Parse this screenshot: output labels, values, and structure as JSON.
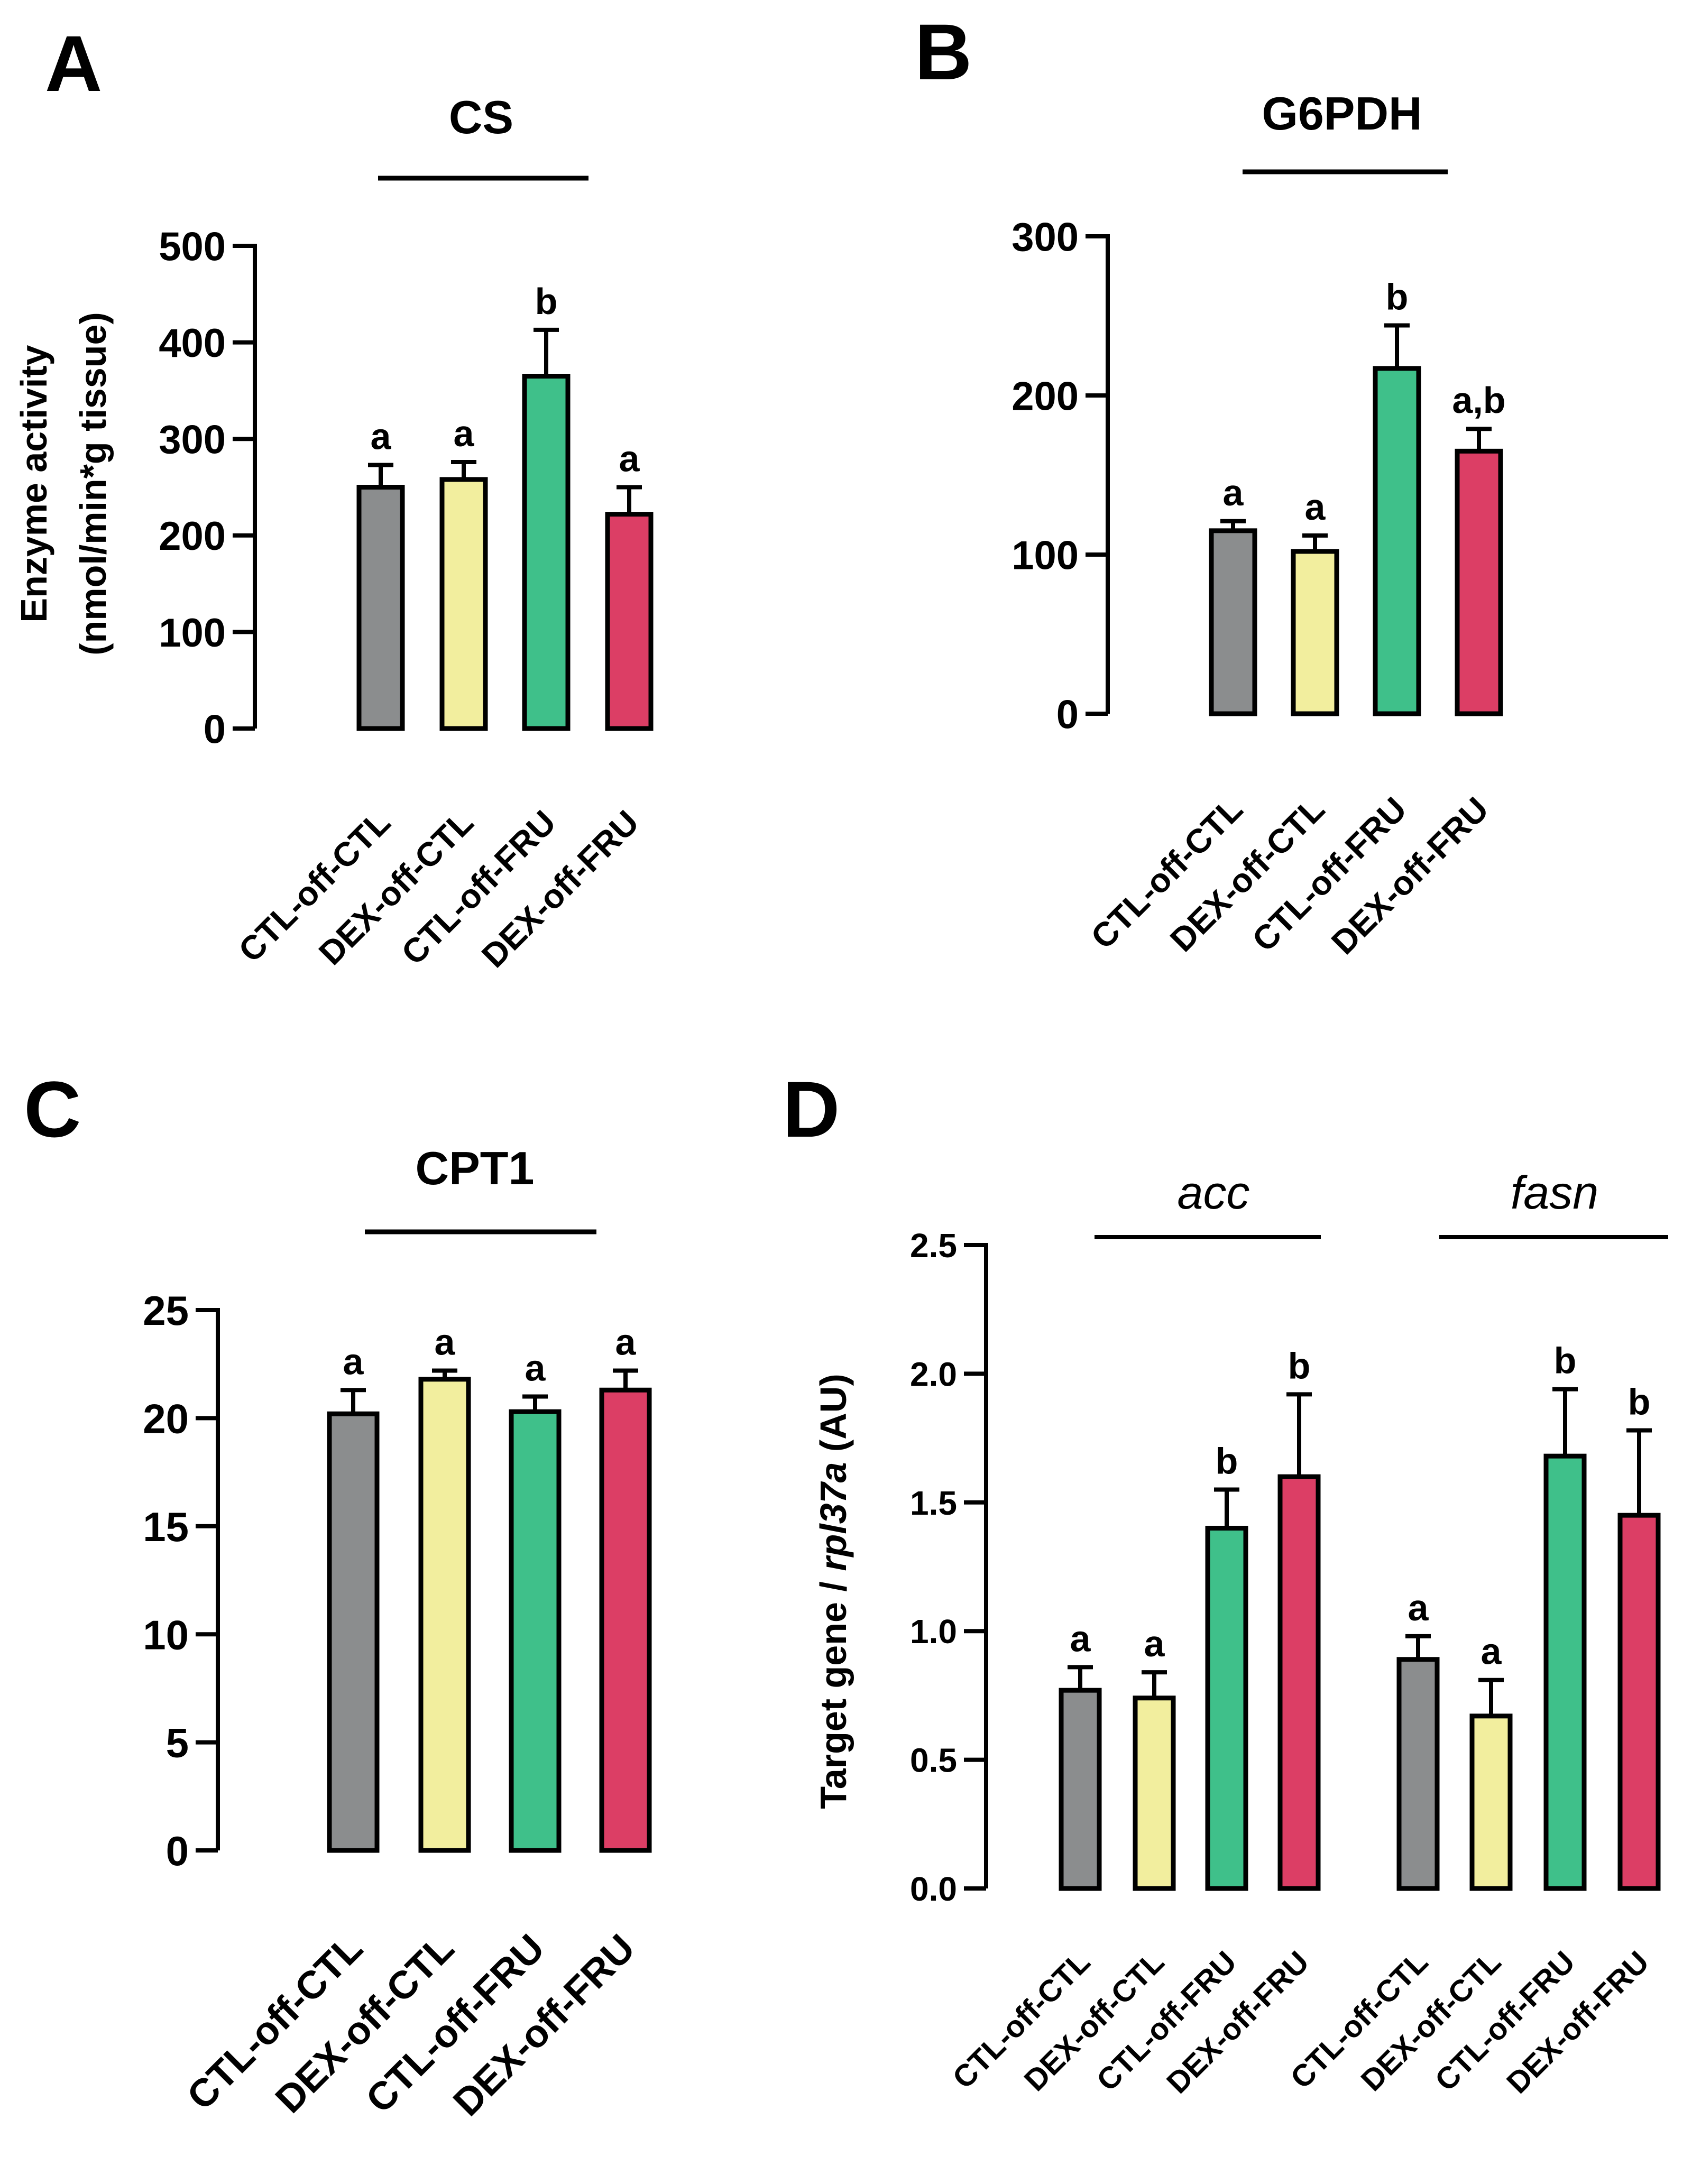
{
  "colors": {
    "CTL-off-CTL": "#8b8d8e",
    "DEX-off-CTL": "#f2ee9e",
    "CTL-off-FRU": "#3fc08a",
    "DEX-off-FRU": "#dc3e65"
  },
  "chart_data": [
    {
      "panel": "A",
      "type": "bar",
      "title": "CS",
      "ylabel_line1": "Enzyme activity",
      "ylabel_line2": "(nmol/min*g tissue)",
      "ylim": [
        0,
        500
      ],
      "yticks": [
        "0",
        "100",
        "200",
        "300",
        "400",
        "500"
      ],
      "categories": [
        "CTL-off-CTL",
        "DEX-off-CTL",
        "CTL-off-FRU",
        "DEX-off-FRU"
      ],
      "values": [
        250,
        258,
        365,
        222
      ],
      "errors": [
        23,
        18,
        48,
        28
      ],
      "labels": [
        "a",
        "a",
        "b",
        "a"
      ]
    },
    {
      "panel": "B",
      "type": "bar",
      "title": "G6PDH",
      "ylim": [
        0,
        300
      ],
      "yticks": [
        "0",
        "100",
        "200",
        "300"
      ],
      "categories": [
        "CTL-off-CTL",
        "DEX-off-CTL",
        "CTL-off-FRU",
        "DEX-off-FRU"
      ],
      "values": [
        115,
        102,
        217,
        165
      ],
      "errors": [
        6,
        10,
        27,
        14
      ],
      "labels": [
        "a",
        "a",
        "b",
        "a,b"
      ]
    },
    {
      "panel": "C",
      "type": "bar",
      "title": "CPT1",
      "ylim": [
        0,
        25
      ],
      "yticks": [
        "0",
        "5",
        "10",
        "15",
        "20",
        "25"
      ],
      "categories": [
        "CTL-off-CTL",
        "DEX-off-CTL",
        "CTL-off-FRU",
        "DEX-off-FRU"
      ],
      "values": [
        20.2,
        21.8,
        20.3,
        21.3
      ],
      "errors": [
        1.1,
        0.4,
        0.7,
        0.9
      ],
      "labels": [
        "a",
        "a",
        "a",
        "a"
      ]
    },
    {
      "panel": "D",
      "type": "bar",
      "ylabel_prefix": "Target gene / ",
      "ylabel_gene": "rpl37a",
      "ylabel_suffix": " (AU)",
      "ylim": [
        0,
        2.5
      ],
      "yticks": [
        "0.0",
        "0.5",
        "1.0",
        "1.5",
        "2.0",
        "2.5"
      ],
      "groups": [
        {
          "title": "acc",
          "categories": [
            "CTL-off-CTL",
            "DEX-off-CTL",
            "CTL-off-FRU",
            "DEX-off-FRU"
          ],
          "values": [
            0.77,
            0.74,
            1.4,
            1.6
          ],
          "errors": [
            0.09,
            0.1,
            0.15,
            0.32
          ],
          "labels": [
            "a",
            "a",
            "b",
            "b"
          ]
        },
        {
          "title": "fasn",
          "categories": [
            "CTL-off-CTL",
            "DEX-off-CTL",
            "CTL-off-FRU",
            "DEX-off-FRU"
          ],
          "values": [
            0.89,
            0.67,
            1.68,
            1.45
          ],
          "errors": [
            0.09,
            0.14,
            0.26,
            0.33
          ],
          "labels": [
            "a",
            "a",
            "b",
            "b"
          ]
        }
      ]
    }
  ]
}
